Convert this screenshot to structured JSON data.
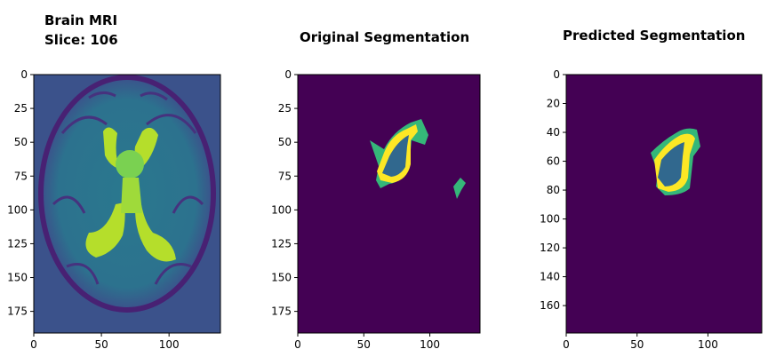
{
  "chart_data": [
    {
      "type": "heatmap",
      "title_line1": "Brain MRI",
      "title_line2": "Slice: 106",
      "xticks": [
        0,
        50,
        100
      ],
      "yticks": [
        0,
        25,
        50,
        75,
        100,
        125,
        150,
        175
      ],
      "xlim": [
        0,
        138
      ],
      "ylim": [
        191,
        0
      ],
      "colormap": "viridis"
    },
    {
      "type": "heatmap",
      "title": "Original Segmentation",
      "xticks": [
        0,
        50,
        100
      ],
      "yticks": [
        0,
        25,
        50,
        75,
        100,
        125,
        150,
        175
      ],
      "xlim": [
        0,
        138
      ],
      "ylim": [
        191,
        0
      ],
      "colormap": "viridis"
    },
    {
      "type": "heatmap",
      "title": "Predicted Segmentation",
      "xticks": [
        0,
        50,
        100
      ],
      "yticks": [
        0,
        20,
        40,
        60,
        80,
        100,
        120,
        140,
        160
      ],
      "xlim": [
        0,
        138
      ],
      "ylim": [
        179,
        0
      ],
      "colormap": "viridis"
    }
  ],
  "colors": {
    "background": "#440154",
    "edema": "#35b779",
    "core": "#31688e",
    "enhancing": "#fde725",
    "mri_bg": "#3b528b"
  }
}
